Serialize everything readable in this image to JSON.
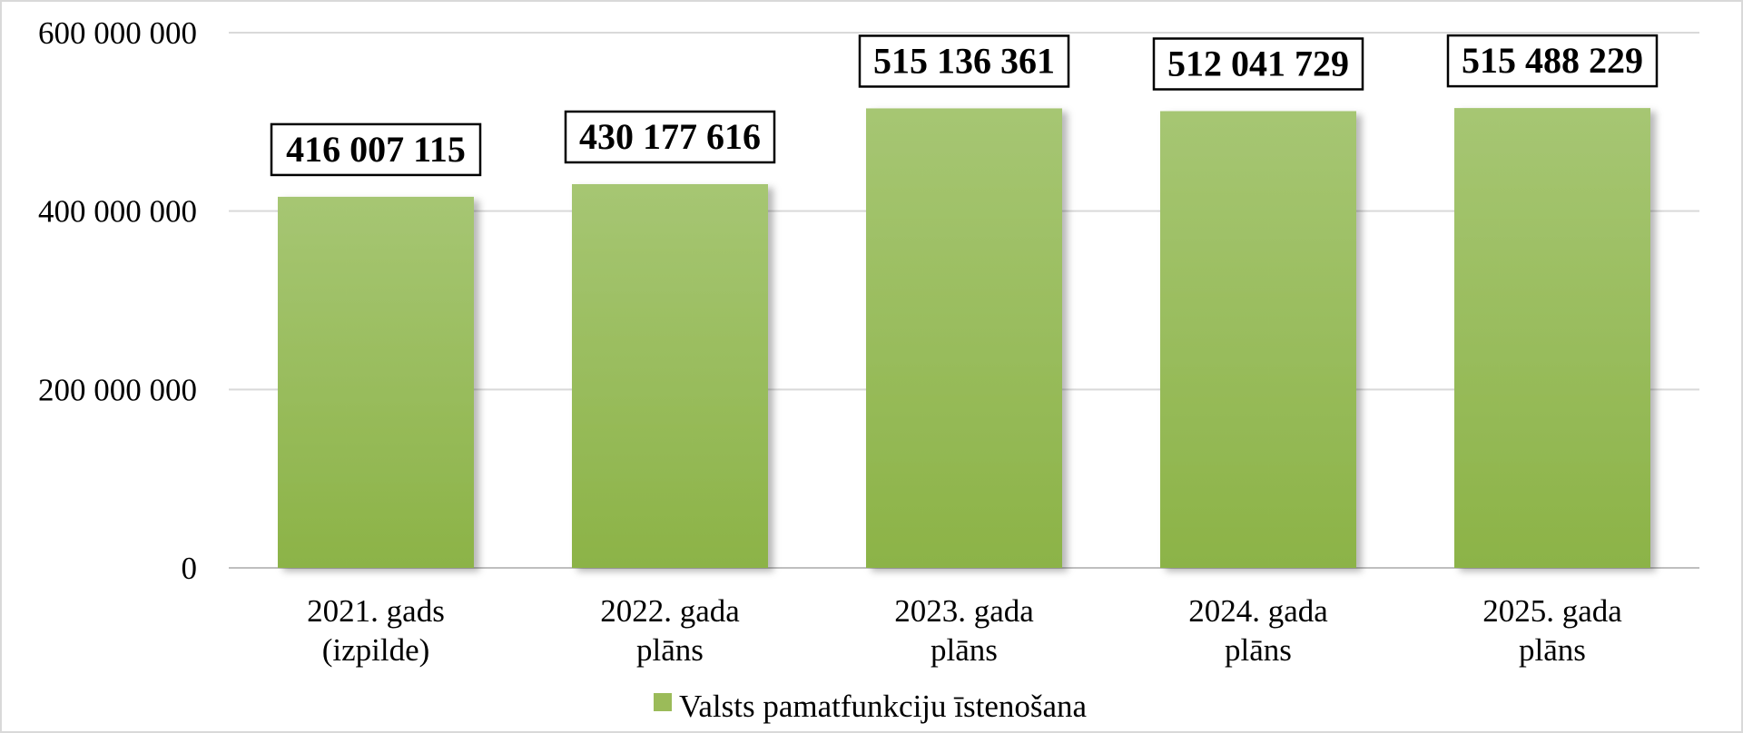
{
  "chart_data": {
    "type": "bar",
    "categories": [
      [
        "2021. gads",
        "(izpilde)"
      ],
      [
        "2022. gada",
        "plāns"
      ],
      [
        "2023. gada",
        "plāns"
      ],
      [
        "2024. gada",
        "plāns"
      ],
      [
        "2025. gada",
        "plāns"
      ]
    ],
    "series": [
      {
        "name": "Valsts pamatfunkciju īstenošana",
        "values": [
          416007115,
          430177616,
          515136361,
          512041729,
          515488229
        ],
        "value_labels": [
          "416 007 115",
          "430 177 616",
          "515 136 361",
          "512 041 729",
          "515 488 229"
        ],
        "color": "#9bbb59"
      }
    ],
    "ylim": [
      0,
      600000000
    ],
    "yticks": [
      0,
      200000000,
      400000000,
      600000000
    ],
    "ytick_labels": [
      "0",
      "200 000 000",
      "400 000 000",
      "600 000 000"
    ],
    "grid": true,
    "legend_position": "bottom"
  }
}
